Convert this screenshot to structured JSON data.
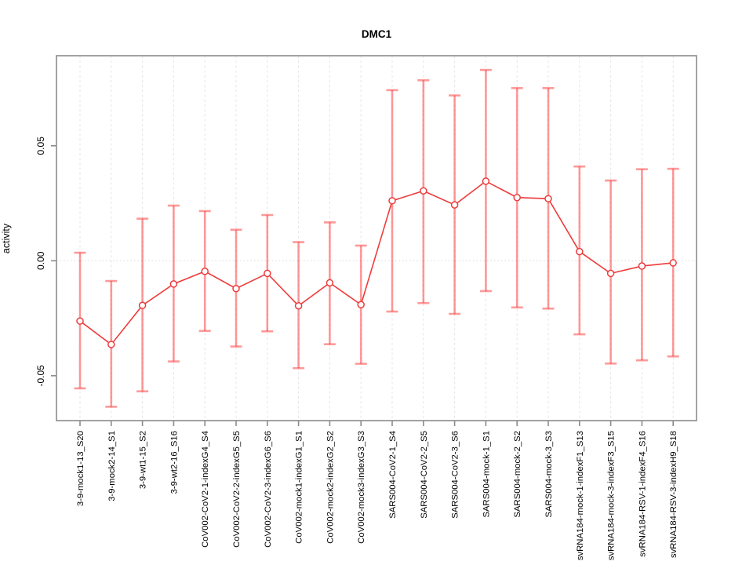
{
  "title": "DMC1",
  "chart_data": {
    "type": "line",
    "title": "DMC1",
    "xlabel": "",
    "ylabel": "activity",
    "ylim": [
      -0.0695,
      0.0892
    ],
    "yticks": [
      0.05,
      0.0,
      -0.05
    ],
    "ytick_labels": [
      "0.05",
      "0.00",
      "-0.05"
    ],
    "grid": "vertical dashed gridline per category; dotted horizontal line at y=0",
    "legend": "none",
    "marker": "open-circle",
    "categories": [
      "3-9-mock1-13_S20",
      "3-9-mock2-14_S1",
      "3-9-wt1-15_S2",
      "3-9-wt2-16_S16",
      "CoV002-CoV2-1-indexG4_S4",
      "CoV002-CoV2-2-indexG5_S5",
      "CoV002-CoV2-3-indexG6_S6",
      "CoV002-mock1-indexG1_S1",
      "CoV002-mock2-indexG2_S2",
      "CoV002-mock3-indexG3_S3",
      "SARS004-CoV2-1_S4",
      "SARS004-CoV2-2_S5",
      "SARS004-CoV2-3_S6",
      "SARS004-mock-1_S1",
      "SARS004-mock-2_S2",
      "SARS004-mock-3_S3",
      "svRNA184-mock-1-indexF1_S13",
      "svRNA184-mock-3-indexF3_S15",
      "svRNA184-RSV-1-indexF4_S16",
      "svRNA184-RSV-3-indexH9_S18"
    ],
    "series": [
      {
        "name": "activity",
        "values": [
          -0.0262,
          -0.0364,
          -0.0194,
          -0.0101,
          -0.0046,
          -0.0121,
          -0.0055,
          -0.0196,
          -0.0096,
          -0.0191,
          0.0261,
          0.0304,
          0.0243,
          0.0346,
          0.0275,
          0.027,
          0.004,
          -0.0055,
          -0.0023,
          -0.0009
        ],
        "err_high": [
          0.0035,
          -0.0088,
          0.0183,
          0.024,
          0.0216,
          0.0135,
          0.0199,
          0.0081,
          0.0167,
          0.0066,
          0.0742,
          0.0785,
          0.0719,
          0.083,
          0.0751,
          0.0751,
          0.041,
          0.0349,
          0.0398,
          0.04
        ],
        "err_low": [
          -0.0555,
          -0.0635,
          -0.0568,
          -0.0438,
          -0.0305,
          -0.0373,
          -0.0307,
          -0.0467,
          -0.0363,
          -0.0448,
          -0.0221,
          -0.0184,
          -0.0231,
          -0.0132,
          -0.0203,
          -0.0208,
          -0.032,
          -0.0447,
          -0.0433,
          -0.0416
        ]
      }
    ],
    "colors": {
      "point_line": "#EE3B3B",
      "error_bar": "rgba(255,70,70,0.55)",
      "gridline": "#E4E4E4",
      "zero_line": "#DCDCDC",
      "box_border": "#8C8C8C",
      "tick": "#8C8C8C",
      "text": "#000000"
    }
  }
}
